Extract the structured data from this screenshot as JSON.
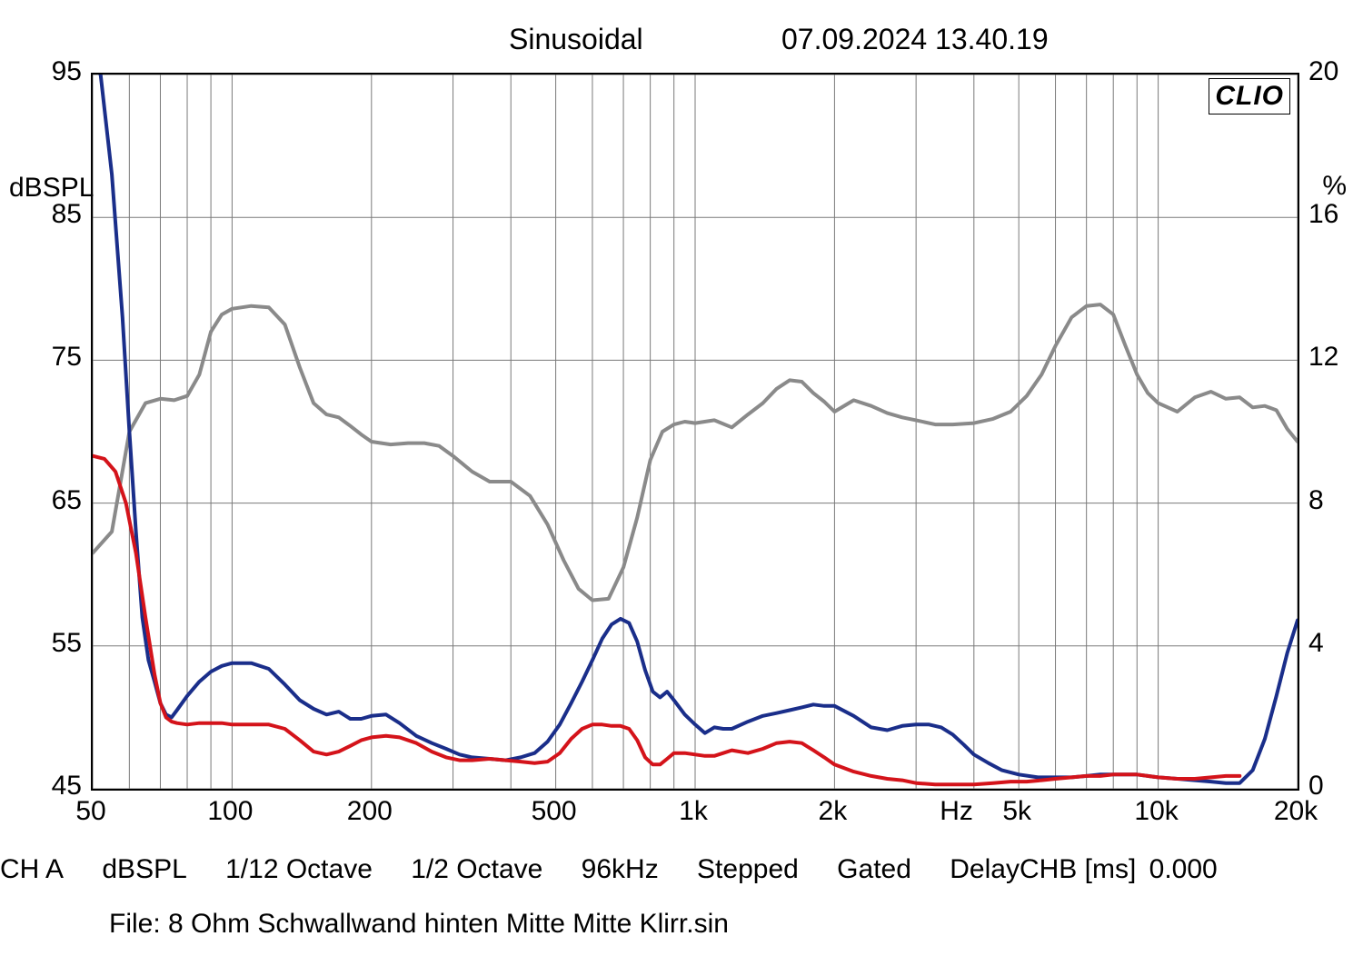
{
  "header": {
    "title": "Sinusoidal",
    "timestamp": "07.09.2024 13.40.19"
  },
  "badge": "CLIO",
  "chart": {
    "type": "line-log-x",
    "background_color": "#ffffff",
    "grid_color": "#7a7a7a",
    "border_color": "#000000",
    "x_axis": {
      "scale": "log",
      "min": 50,
      "max": 20000,
      "major_ticks": [
        50,
        100,
        200,
        500,
        1000,
        2000,
        5000,
        10000,
        20000
      ],
      "tick_labels": [
        "50",
        "100",
        "200",
        "500",
        "1k",
        "2k",
        "5k",
        "10k",
        "20k"
      ],
      "minor_ticks": [
        60,
        70,
        80,
        90,
        300,
        400,
        600,
        700,
        800,
        900,
        3000,
        4000,
        6000,
        7000,
        8000,
        9000
      ],
      "unit_label": "Hz",
      "unit_label_before_tick": 5000,
      "label_fontsize": 30
    },
    "y_left": {
      "min": 45,
      "max": 95,
      "ticks": [
        45,
        55,
        65,
        75,
        85,
        95
      ],
      "tick_labels": [
        "45",
        "55",
        "65",
        "75",
        "85",
        "95"
      ],
      "title": "dBSPL",
      "label_fontsize": 30
    },
    "y_right": {
      "min": 0,
      "max": 20,
      "ticks": [
        0,
        4,
        8,
        12,
        16,
        20
      ],
      "tick_labels": [
        "0",
        "4",
        "8",
        "12",
        "16",
        "20"
      ],
      "title": "%",
      "label_fontsize": 30
    },
    "series": [
      {
        "name": "impedance-or-response-gray",
        "color": "#8a8a8a",
        "width": 4,
        "axis": "left",
        "points": [
          [
            50,
            61.5
          ],
          [
            55,
            63
          ],
          [
            60,
            70
          ],
          [
            65,
            72
          ],
          [
            70,
            72.3
          ],
          [
            75,
            72.2
          ],
          [
            80,
            72.5
          ],
          [
            85,
            74
          ],
          [
            90,
            77
          ],
          [
            95,
            78.2
          ],
          [
            100,
            78.6
          ],
          [
            110,
            78.8
          ],
          [
            120,
            78.7
          ],
          [
            130,
            77.5
          ],
          [
            140,
            74.5
          ],
          [
            150,
            72
          ],
          [
            160,
            71.2
          ],
          [
            170,
            71
          ],
          [
            180,
            70.4
          ],
          [
            190,
            69.8
          ],
          [
            200,
            69.3
          ],
          [
            220,
            69.1
          ],
          [
            240,
            69.2
          ],
          [
            260,
            69.2
          ],
          [
            280,
            69
          ],
          [
            300,
            68.3
          ],
          [
            330,
            67.2
          ],
          [
            360,
            66.5
          ],
          [
            400,
            66.5
          ],
          [
            440,
            65.5
          ],
          [
            480,
            63.5
          ],
          [
            520,
            61
          ],
          [
            560,
            59
          ],
          [
            600,
            58.2
          ],
          [
            650,
            58.3
          ],
          [
            700,
            60.5
          ],
          [
            750,
            64
          ],
          [
            800,
            68
          ],
          [
            850,
            70
          ],
          [
            900,
            70.5
          ],
          [
            950,
            70.7
          ],
          [
            1000,
            70.6
          ],
          [
            1100,
            70.8
          ],
          [
            1200,
            70.3
          ],
          [
            1300,
            71.2
          ],
          [
            1400,
            72
          ],
          [
            1500,
            73
          ],
          [
            1600,
            73.6
          ],
          [
            1700,
            73.5
          ],
          [
            1800,
            72.7
          ],
          [
            1900,
            72.1
          ],
          [
            2000,
            71.4
          ],
          [
            2200,
            72.2
          ],
          [
            2400,
            71.8
          ],
          [
            2600,
            71.3
          ],
          [
            2800,
            71
          ],
          [
            3000,
            70.8
          ],
          [
            3300,
            70.5
          ],
          [
            3600,
            70.5
          ],
          [
            4000,
            70.6
          ],
          [
            4400,
            70.9
          ],
          [
            4800,
            71.4
          ],
          [
            5200,
            72.5
          ],
          [
            5600,
            74
          ],
          [
            6000,
            76
          ],
          [
            6500,
            78
          ],
          [
            7000,
            78.8
          ],
          [
            7500,
            78.9
          ],
          [
            8000,
            78.2
          ],
          [
            8500,
            76
          ],
          [
            9000,
            74
          ],
          [
            9500,
            72.7
          ],
          [
            10000,
            72
          ],
          [
            11000,
            71.4
          ],
          [
            12000,
            72.4
          ],
          [
            13000,
            72.8
          ],
          [
            14000,
            72.3
          ],
          [
            15000,
            72.4
          ],
          [
            16000,
            71.7
          ],
          [
            17000,
            71.8
          ],
          [
            18000,
            71.5
          ],
          [
            19000,
            70.2
          ],
          [
            20000,
            69.3
          ]
        ]
      },
      {
        "name": "thd-blue",
        "color": "#1a2e8a",
        "width": 4,
        "axis": "left",
        "points": [
          [
            50,
            98
          ],
          [
            52,
            95
          ],
          [
            55,
            88
          ],
          [
            58,
            78
          ],
          [
            60,
            70
          ],
          [
            62,
            63
          ],
          [
            64,
            57
          ],
          [
            66,
            54
          ],
          [
            68,
            52.5
          ],
          [
            70,
            51
          ],
          [
            72,
            50.2
          ],
          [
            74,
            50
          ],
          [
            76,
            50.5
          ],
          [
            80,
            51.5
          ],
          [
            85,
            52.5
          ],
          [
            90,
            53.2
          ],
          [
            95,
            53.6
          ],
          [
            100,
            53.8
          ],
          [
            110,
            53.8
          ],
          [
            120,
            53.4
          ],
          [
            130,
            52.3
          ],
          [
            140,
            51.2
          ],
          [
            150,
            50.6
          ],
          [
            160,
            50.2
          ],
          [
            170,
            50.4
          ],
          [
            180,
            49.9
          ],
          [
            190,
            49.9
          ],
          [
            200,
            50.1
          ],
          [
            215,
            50.2
          ],
          [
            230,
            49.6
          ],
          [
            250,
            48.7
          ],
          [
            270,
            48.2
          ],
          [
            290,
            47.8
          ],
          [
            310,
            47.4
          ],
          [
            330,
            47.2
          ],
          [
            360,
            47.1
          ],
          [
            390,
            47
          ],
          [
            420,
            47.2
          ],
          [
            450,
            47.5
          ],
          [
            480,
            48.3
          ],
          [
            510,
            49.5
          ],
          [
            540,
            51
          ],
          [
            570,
            52.5
          ],
          [
            600,
            54
          ],
          [
            630,
            55.5
          ],
          [
            660,
            56.5
          ],
          [
            690,
            56.9
          ],
          [
            720,
            56.6
          ],
          [
            750,
            55.3
          ],
          [
            780,
            53.3
          ],
          [
            810,
            51.8
          ],
          [
            840,
            51.4
          ],
          [
            870,
            51.8
          ],
          [
            900,
            51.2
          ],
          [
            950,
            50.2
          ],
          [
            1000,
            49.5
          ],
          [
            1050,
            48.9
          ],
          [
            1100,
            49.3
          ],
          [
            1150,
            49.2
          ],
          [
            1200,
            49.2
          ],
          [
            1300,
            49.7
          ],
          [
            1400,
            50.1
          ],
          [
            1500,
            50.3
          ],
          [
            1600,
            50.5
          ],
          [
            1700,
            50.7
          ],
          [
            1800,
            50.9
          ],
          [
            1900,
            50.8
          ],
          [
            2000,
            50.8
          ],
          [
            2200,
            50.1
          ],
          [
            2400,
            49.3
          ],
          [
            2600,
            49.1
          ],
          [
            2800,
            49.4
          ],
          [
            3000,
            49.5
          ],
          [
            3200,
            49.5
          ],
          [
            3400,
            49.3
          ],
          [
            3600,
            48.8
          ],
          [
            3800,
            48.1
          ],
          [
            4000,
            47.4
          ],
          [
            4300,
            46.8
          ],
          [
            4600,
            46.3
          ],
          [
            5000,
            46
          ],
          [
            5500,
            45.8
          ],
          [
            6000,
            45.8
          ],
          [
            6500,
            45.8
          ],
          [
            7000,
            45.9
          ],
          [
            7500,
            46
          ],
          [
            8000,
            46
          ],
          [
            8500,
            46
          ],
          [
            9000,
            46
          ],
          [
            9500,
            45.9
          ],
          [
            10000,
            45.8
          ],
          [
            11000,
            45.7
          ],
          [
            12000,
            45.6
          ],
          [
            13000,
            45.5
          ],
          [
            14000,
            45.4
          ],
          [
            15000,
            45.4
          ],
          [
            16000,
            46.3
          ],
          [
            17000,
            48.5
          ],
          [
            18000,
            51.5
          ],
          [
            19000,
            54.5
          ],
          [
            20000,
            56.8
          ]
        ]
      },
      {
        "name": "thd-red",
        "color": "#d4131a",
        "width": 4,
        "axis": "left",
        "points": [
          [
            50,
            68.3
          ],
          [
            53,
            68.1
          ],
          [
            56,
            67.2
          ],
          [
            59,
            65
          ],
          [
            62,
            61.5
          ],
          [
            65,
            57
          ],
          [
            68,
            53
          ],
          [
            70,
            51
          ],
          [
            72,
            50
          ],
          [
            74,
            49.7
          ],
          [
            76,
            49.6
          ],
          [
            80,
            49.5
          ],
          [
            85,
            49.6
          ],
          [
            90,
            49.6
          ],
          [
            95,
            49.6
          ],
          [
            100,
            49.5
          ],
          [
            110,
            49.5
          ],
          [
            120,
            49.5
          ],
          [
            130,
            49.2
          ],
          [
            140,
            48.4
          ],
          [
            150,
            47.6
          ],
          [
            160,
            47.4
          ],
          [
            170,
            47.6
          ],
          [
            180,
            48
          ],
          [
            190,
            48.4
          ],
          [
            200,
            48.6
          ],
          [
            215,
            48.7
          ],
          [
            230,
            48.6
          ],
          [
            250,
            48.2
          ],
          [
            270,
            47.6
          ],
          [
            290,
            47.2
          ],
          [
            310,
            47
          ],
          [
            330,
            47
          ],
          [
            360,
            47.1
          ],
          [
            390,
            47
          ],
          [
            420,
            46.9
          ],
          [
            450,
            46.8
          ],
          [
            480,
            46.9
          ],
          [
            510,
            47.5
          ],
          [
            540,
            48.5
          ],
          [
            570,
            49.2
          ],
          [
            600,
            49.5
          ],
          [
            630,
            49.5
          ],
          [
            660,
            49.4
          ],
          [
            690,
            49.4
          ],
          [
            720,
            49.2
          ],
          [
            750,
            48.4
          ],
          [
            780,
            47.2
          ],
          [
            810,
            46.7
          ],
          [
            840,
            46.7
          ],
          [
            870,
            47.1
          ],
          [
            900,
            47.5
          ],
          [
            950,
            47.5
          ],
          [
            1000,
            47.4
          ],
          [
            1050,
            47.3
          ],
          [
            1100,
            47.3
          ],
          [
            1150,
            47.5
          ],
          [
            1200,
            47.7
          ],
          [
            1300,
            47.5
          ],
          [
            1400,
            47.8
          ],
          [
            1500,
            48.2
          ],
          [
            1600,
            48.3
          ],
          [
            1700,
            48.2
          ],
          [
            1800,
            47.7
          ],
          [
            1900,
            47.2
          ],
          [
            2000,
            46.7
          ],
          [
            2200,
            46.2
          ],
          [
            2400,
            45.9
          ],
          [
            2600,
            45.7
          ],
          [
            2800,
            45.6
          ],
          [
            3000,
            45.4
          ],
          [
            3300,
            45.3
          ],
          [
            3600,
            45.3
          ],
          [
            4000,
            45.3
          ],
          [
            4400,
            45.4
          ],
          [
            4800,
            45.5
          ],
          [
            5200,
            45.5
          ],
          [
            5600,
            45.6
          ],
          [
            6000,
            45.7
          ],
          [
            6500,
            45.8
          ],
          [
            7000,
            45.9
          ],
          [
            7500,
            45.9
          ],
          [
            8000,
            46
          ],
          [
            8500,
            46
          ],
          [
            9000,
            46
          ],
          [
            9500,
            45.9
          ],
          [
            10000,
            45.8
          ],
          [
            11000,
            45.7
          ],
          [
            12000,
            45.7
          ],
          [
            13000,
            45.8
          ],
          [
            14000,
            45.9
          ],
          [
            15000,
            45.9
          ]
        ]
      }
    ]
  },
  "footer": {
    "line1": {
      "ch": "CH A",
      "unit": "dBSPL",
      "smoothing1": "1/12 Octave",
      "smoothing2": "1/2 Octave",
      "fs": "96kHz",
      "mode": "Stepped",
      "gated": "Gated",
      "delay_label": "DelayCHB [ms]",
      "delay_value": "0.000"
    },
    "line2": {
      "file_label": "File:",
      "file_name": "8 Ohm Schwallwand hinten Mitte Mitte Klirr.sin"
    }
  }
}
